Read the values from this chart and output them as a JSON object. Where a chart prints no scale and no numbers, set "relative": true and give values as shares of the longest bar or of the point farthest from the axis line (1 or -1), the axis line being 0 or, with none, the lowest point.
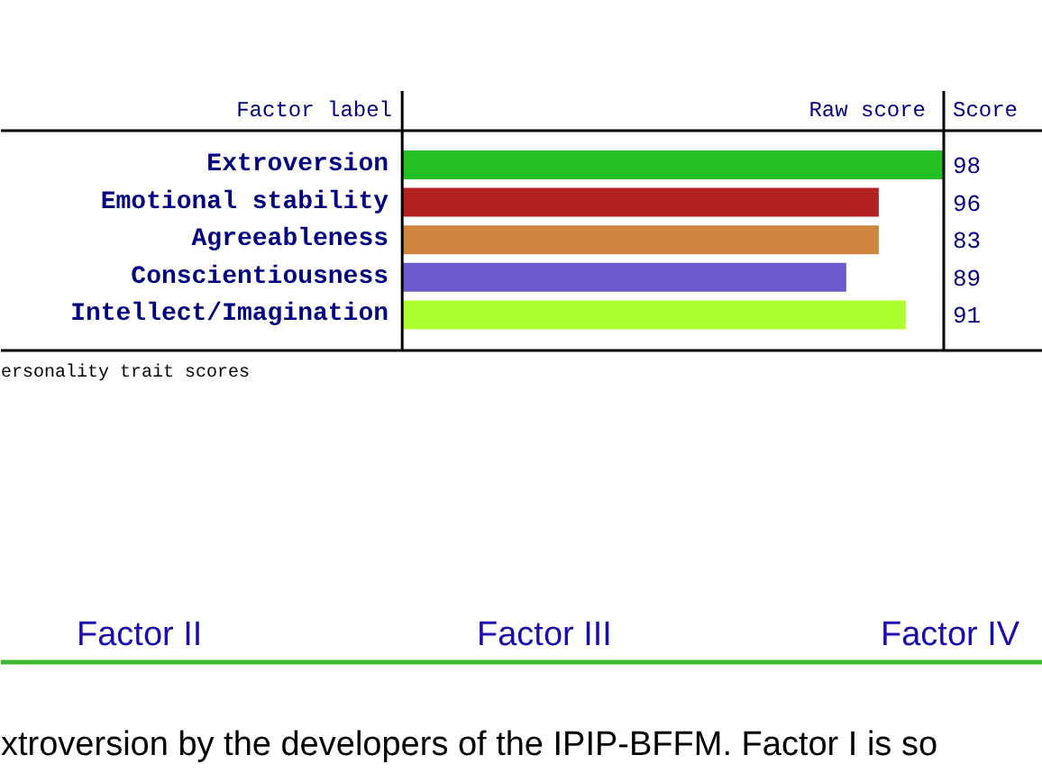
{
  "chart_data": {
    "type": "bar",
    "orientation": "horizontal",
    "relative": true,
    "categories": [
      "Extroversion",
      "Emotional stability",
      "Agreeableness",
      "Conscientiousness",
      "Intellect/Imagination"
    ],
    "values": [
      1,
      0.88,
      0.88,
      0.82,
      0.93
    ],
    "colors": [
      "#22c022",
      "#b22222",
      "#cd853f",
      "#6a5acd",
      "#adff2f"
    ],
    "xlabel": "Raw score",
    "ylabel": "Factor label",
    "annotations": [
      "98",
      "96",
      "83",
      "89",
      "91",
      "Score",
      "ersonality trait scores",
      "Factor II",
      "Factor III",
      "Factor IV",
      "xtroversion by the developers of the IPIP-BFFM. Factor I is so"
    ]
  }
}
